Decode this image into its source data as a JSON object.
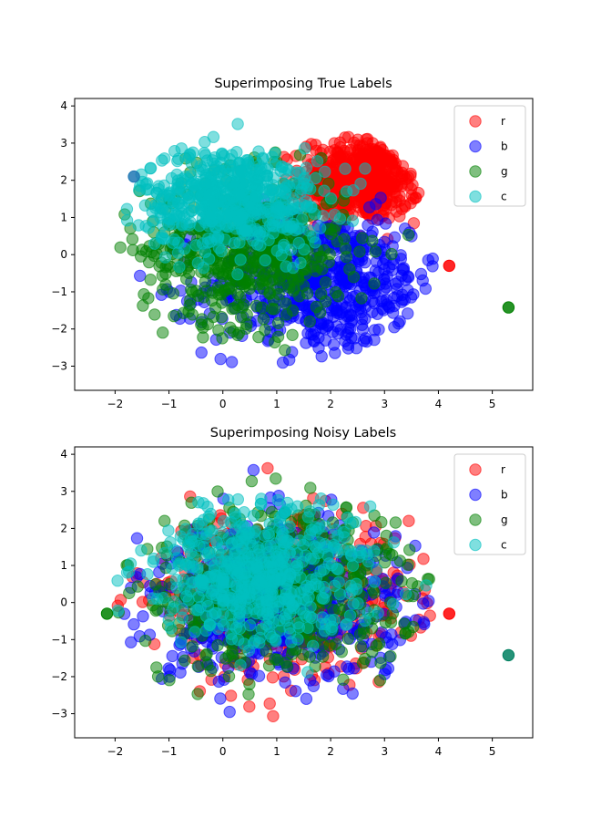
{
  "chart_data": [
    {
      "type": "scatter",
      "title": "Superimposing True Labels",
      "xlabel": "",
      "ylabel": "",
      "xlim": [
        -2.75,
        5.75
      ],
      "ylim": [
        -3.65,
        4.2
      ],
      "xticks": [
        -2,
        -1,
        0,
        1,
        2,
        3,
        4,
        5
      ],
      "yticks": [
        -3,
        -2,
        -1,
        0,
        1,
        2,
        3,
        4
      ],
      "xtick_labels": [
        "−2",
        "−1",
        "0",
        "1",
        "2",
        "3",
        "4",
        "5"
      ],
      "ytick_labels": [
        "−3",
        "−2",
        "−1",
        "0",
        "1",
        "2",
        "3",
        "4"
      ],
      "grid": false,
      "legend_position": "top-right",
      "alpha": 0.5,
      "series": [
        {
          "name": "r",
          "color": "#ff0000",
          "cluster": {
            "cx": 2.55,
            "cy": 2.0,
            "sx": 0.55,
            "sy": 0.55
          }
        },
        {
          "name": "b",
          "color": "#0000ff",
          "cluster": {
            "cx": 1.9,
            "cy": -0.8,
            "sx": 1.1,
            "sy": 0.95
          }
        },
        {
          "name": "g",
          "color": "#008000",
          "cluster": {
            "cx": 0.4,
            "cy": 0.1,
            "sx": 0.95,
            "sy": 1.0
          }
        },
        {
          "name": "c",
          "color": "#00bfbf",
          "cluster": {
            "cx": 0.2,
            "cy": 1.5,
            "sx": 0.85,
            "sy": 0.7
          }
        }
      ],
      "outliers": [
        {
          "x": 5.3,
          "y": -1.42,
          "color": "#008000"
        },
        {
          "x": -1.65,
          "y": 2.1,
          "color": "#1f77b4"
        },
        {
          "x": 4.2,
          "y": -0.3,
          "color": "#ff0000"
        }
      ]
    },
    {
      "type": "scatter",
      "title": "Superimposing Noisy Labels",
      "xlabel": "",
      "ylabel": "",
      "xlim": [
        -2.75,
        5.75
      ],
      "ylim": [
        -3.65,
        4.2
      ],
      "xticks": [
        -2,
        -1,
        0,
        1,
        2,
        3,
        4,
        5
      ],
      "yticks": [
        -3,
        -2,
        -1,
        0,
        1,
        2,
        3,
        4
      ],
      "xtick_labels": [
        "−2",
        "−1",
        "0",
        "1",
        "2",
        "3",
        "4",
        "5"
      ],
      "ytick_labels": [
        "−3",
        "−2",
        "−1",
        "0",
        "1",
        "2",
        "3",
        "4"
      ],
      "grid": false,
      "legend_position": "top-right",
      "alpha": 0.5,
      "series": [
        {
          "name": "r",
          "color": "#ff0000",
          "cluster": {
            "cx": 1.0,
            "cy": 0.2,
            "sx": 1.2,
            "sy": 1.1
          }
        },
        {
          "name": "b",
          "color": "#0000ff",
          "cluster": {
            "cx": 1.0,
            "cy": 0.0,
            "sx": 1.25,
            "sy": 1.15
          }
        },
        {
          "name": "g",
          "color": "#008000",
          "cluster": {
            "cx": 1.0,
            "cy": 0.3,
            "sx": 1.25,
            "sy": 1.1
          }
        },
        {
          "name": "c",
          "color": "#00bfbf",
          "cluster": {
            "cx": 0.7,
            "cy": 0.8,
            "sx": 1.0,
            "sy": 0.9
          }
        }
      ],
      "outliers": [
        {
          "x": 5.3,
          "y": -1.42,
          "color": "#008060"
        },
        {
          "x": 4.2,
          "y": -0.3,
          "color": "#ff0000"
        },
        {
          "x": -2.15,
          "y": -0.3,
          "color": "#008000"
        }
      ]
    }
  ]
}
